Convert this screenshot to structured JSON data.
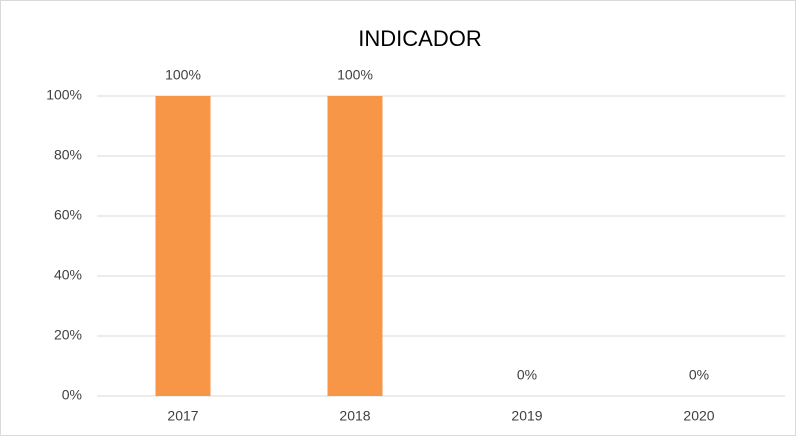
{
  "chart_data": {
    "type": "bar",
    "title": "INDICADOR",
    "categories": [
      "2017",
      "2018",
      "2019",
      "2020"
    ],
    "values": [
      100,
      100,
      0,
      0
    ],
    "value_labels": [
      "100%",
      "100%",
      "0%",
      "0%"
    ],
    "color": "#f79646",
    "ylim": [
      0,
      100
    ],
    "yticks": [
      {
        "value": 0,
        "label": "0%"
      },
      {
        "value": 20,
        "label": "20%"
      },
      {
        "value": 40,
        "label": "40%"
      },
      {
        "value": 60,
        "label": "60%"
      },
      {
        "value": 80,
        "label": "80%"
      },
      {
        "value": 100,
        "label": "100%"
      }
    ],
    "grid": true
  }
}
